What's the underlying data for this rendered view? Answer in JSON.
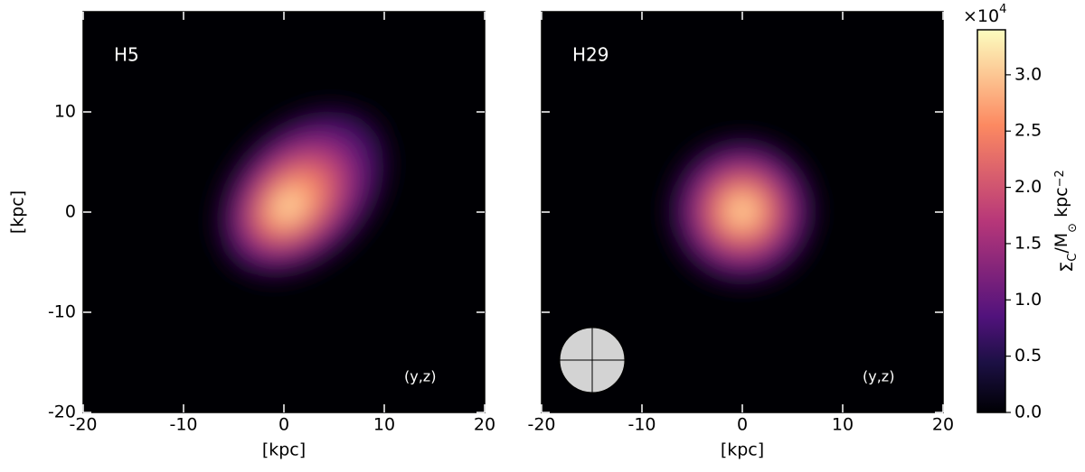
{
  "chart_data": [
    {
      "type": "image",
      "label": "H5",
      "annotation": "(y,z)",
      "xlabel": "[kpc]",
      "ylabel": "[kpc]",
      "xlim": [
        -20,
        20
      ],
      "ylim": [
        -20,
        20
      ],
      "xticks": [
        -20,
        -10,
        0,
        10,
        20
      ],
      "yticks": [
        -20,
        -10,
        0,
        10
      ],
      "ytick_labels": true
    },
    {
      "type": "image",
      "label": "H29",
      "annotation": "(y,z)",
      "xlabel": "[kpc]",
      "xlim": [
        -20,
        20
      ],
      "ylim": [
        -20,
        20
      ],
      "xticks": [
        -20,
        -10,
        0,
        10,
        20
      ],
      "yticks": [
        -20,
        -10,
        0,
        10
      ],
      "ytick_labels": false
    }
  ],
  "colorbar": {
    "lim": [
      0,
      3.4
    ],
    "ticks": [
      {
        "value": 0,
        "label": "0.0"
      },
      0.5,
      {
        "value": 1,
        "label": "1.0"
      },
      1.5,
      {
        "value": 2,
        "label": "2.0"
      },
      2.5,
      {
        "value": 3,
        "label": "3.0"
      }
    ],
    "multiplier": [
      "×10",
      "4"
    ],
    "label": [
      "Σ",
      "C",
      "/M",
      "⊙",
      " kpc",
      "−2"
    ]
  }
}
